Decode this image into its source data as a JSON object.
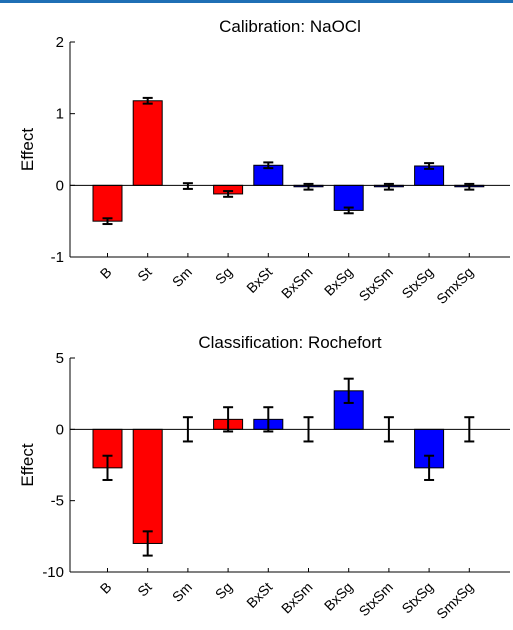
{
  "colors": {
    "red": "#ff0000",
    "blue": "#0000ff",
    "axis": "#000000",
    "topline": "#1f6fb5"
  },
  "chart_data": [
    {
      "type": "bar",
      "title": "Calibration: NaOCl",
      "ylabel": "Effect",
      "xlabel": "",
      "ylim": [
        -1,
        2
      ],
      "yticks": [
        -1,
        0,
        1,
        2
      ],
      "categories": [
        "B",
        "St",
        "Sm",
        "Sg",
        "BxSt",
        "BxSm",
        "BxSg",
        "StxSm",
        "StxSg",
        "SmxSg"
      ],
      "values": [
        -0.5,
        1.18,
        -0.01,
        -0.12,
        0.28,
        -0.02,
        -0.35,
        -0.02,
        0.27,
        -0.02
      ],
      "errors": [
        0.04,
        0.04,
        0.04,
        0.04,
        0.04,
        0.04,
        0.04,
        0.04,
        0.04,
        0.04
      ],
      "bar_colors": [
        "red",
        "red",
        "red",
        "red",
        "blue",
        "blue",
        "blue",
        "blue",
        "blue",
        "blue"
      ],
      "grid": false
    },
    {
      "type": "bar",
      "title": "Classification: Rochefort",
      "ylabel": "Effect",
      "xlabel": "",
      "ylim": [
        -10,
        5
      ],
      "yticks": [
        -10,
        -5,
        0,
        5
      ],
      "categories": [
        "B",
        "St",
        "Sm",
        "Sg",
        "BxSt",
        "BxSm",
        "BxSg",
        "StxSm",
        "StxSg",
        "SmxSg"
      ],
      "values": [
        -2.7,
        -8.0,
        0.0,
        0.7,
        0.7,
        0.0,
        2.7,
        0.0,
        -2.7,
        0.0
      ],
      "errors": [
        0.85,
        0.85,
        0.85,
        0.85,
        0.85,
        0.85,
        0.85,
        0.85,
        0.85,
        0.85
      ],
      "bar_colors": [
        "red",
        "red",
        "red",
        "red",
        "blue",
        "blue",
        "blue",
        "blue",
        "blue",
        "blue"
      ],
      "grid": false
    }
  ]
}
